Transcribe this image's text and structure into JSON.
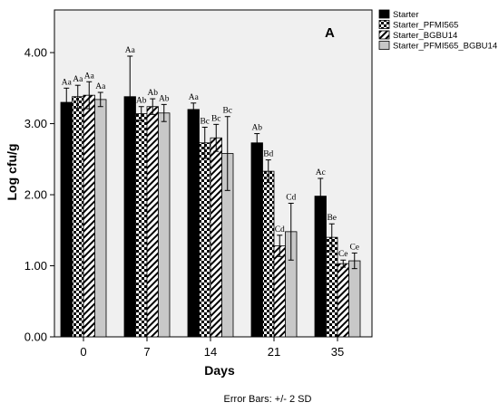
{
  "chart_data": {
    "type": "bar",
    "panel_label": "A",
    "xlabel": "Days",
    "ylabel": "Log cfu/g",
    "footnote": "Error Bars: +/- 2 SD",
    "categories": [
      "0",
      "7",
      "14",
      "21",
      "35"
    ],
    "ylim": [
      0,
      4.6
    ],
    "yticks": [
      0,
      1,
      2,
      3,
      4
    ],
    "ytick_labels": [
      "0.00",
      "1.00",
      "2.00",
      "3.00",
      "4.00"
    ],
    "legend_position": "top-right-outside",
    "series": [
      {
        "name": "Starter",
        "pattern": "solid-black",
        "values": [
          3.3,
          3.38,
          3.2,
          2.73,
          1.98
        ],
        "errors": [
          0.2,
          0.57,
          0.09,
          0.13,
          0.25
        ],
        "labels": [
          "Aa",
          "Aa",
          "Aa",
          "Ab",
          "Ac"
        ]
      },
      {
        "name": "Starter_PFMI565",
        "pattern": "checkerboard",
        "values": [
          3.38,
          3.14,
          2.73,
          2.33,
          1.4
        ],
        "errors": [
          0.16,
          0.1,
          0.22,
          0.16,
          0.19
        ],
        "labels": [
          "Aa",
          "Ab",
          "Bc",
          "Bd",
          "Be"
        ]
      },
      {
        "name": "Starter_BGBU14",
        "pattern": "diagonal-hatch",
        "values": [
          3.4,
          3.24,
          2.8,
          1.28,
          1.03
        ],
        "errors": [
          0.19,
          0.11,
          0.19,
          0.15,
          0.05
        ],
        "labels": [
          "Aa",
          "Ab",
          "Bc",
          "Cd",
          "Ce"
        ]
      },
      {
        "name": "Starter_PFMI565_BGBU14",
        "pattern": "light-gray",
        "values": [
          3.34,
          3.15,
          2.58,
          1.48,
          1.07
        ],
        "errors": [
          0.1,
          0.12,
          0.52,
          0.4,
          0.11
        ],
        "labels": [
          "Aa",
          "Ab",
          "Bc",
          "Cd",
          "Ce"
        ]
      }
    ]
  }
}
